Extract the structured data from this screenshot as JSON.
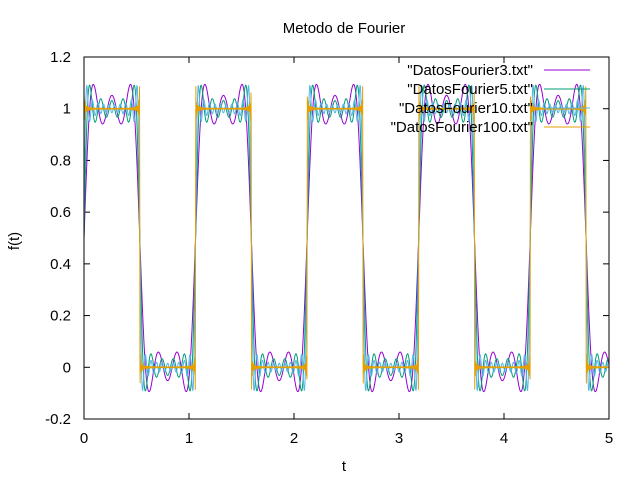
{
  "chart_data": {
    "type": "line",
    "title": "Metodo de Fourier",
    "xlabel": "t",
    "ylabel": "f(t)",
    "xlim": [
      0,
      5
    ],
    "ylim": [
      -0.2,
      1.2
    ],
    "x_ticks": [
      0,
      1,
      2,
      3,
      4,
      5
    ],
    "y_ticks": [
      -0.2,
      0,
      0.2,
      0.4,
      0.6,
      0.8,
      1,
      1.2
    ],
    "x_tick_labels": [
      "0",
      "1",
      "2",
      "3",
      "4",
      "5"
    ],
    "y_tick_labels": [
      "-0.2",
      "0",
      "0.2",
      "0.4",
      "0.6",
      "0.8",
      "1",
      "1.2"
    ],
    "grid": false,
    "legend_position": "top-right",
    "function": "square wave, period 1.0625, value 1 for t in [0, 0.53125), 0 otherwise; Fourier partial sums",
    "period": 1.0625,
    "series": [
      {
        "name": "\"DatosFourier3.txt\"",
        "color": "#9400d3",
        "harmonics": 3
      },
      {
        "name": "\"DatosFourier5.txt\"",
        "color": "#009e73",
        "harmonics": 5
      },
      {
        "name": "\"DatosFourier10.txt\"",
        "color": "#56b4e9",
        "harmonics": 10
      },
      {
        "name": "\"DatosFourier100.txt\"",
        "color": "#e69f00",
        "harmonics": 100
      }
    ]
  }
}
